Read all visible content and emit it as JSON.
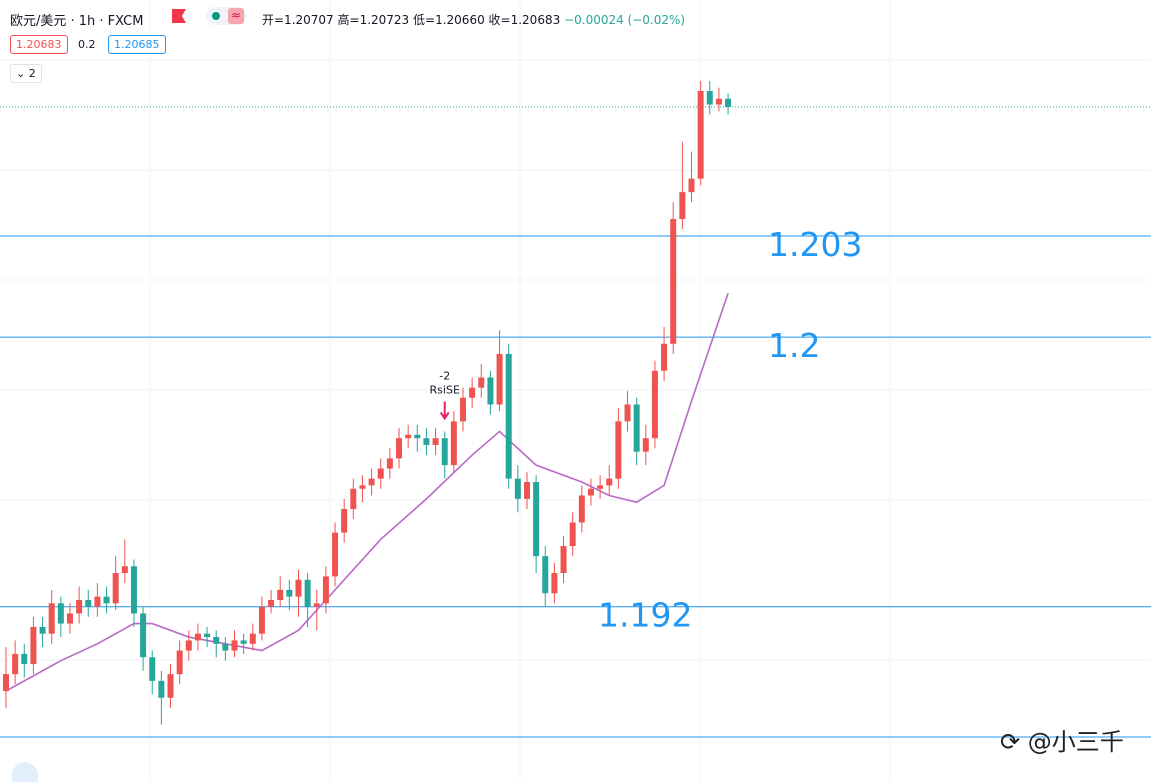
{
  "header": {
    "symbol": "欧元/美元 · 1h · FXCM",
    "open": "开=1.20707",
    "high": "高=1.20723",
    "low": "低=1.20660",
    "close": "收=1.20683",
    "change": "−0.00024 (−0.02%)",
    "bid": "1.20683",
    "spread": "0.2",
    "ask": "1.20685",
    "indicators": "2"
  },
  "watermark": "@小三千",
  "chart_data": {
    "type": "candlestick",
    "ylim": [
      1.1868,
      1.21
    ],
    "up_color": "#ef5350",
    "down_color": "#26a69a",
    "candles": [
      [
        1.1895,
        1.1908,
        1.189,
        1.19
      ],
      [
        1.19,
        1.191,
        1.1897,
        1.1906
      ],
      [
        1.1906,
        1.1909,
        1.1899,
        1.1903
      ],
      [
        1.1903,
        1.1917,
        1.19,
        1.1914
      ],
      [
        1.1914,
        1.1917,
        1.1908,
        1.1912
      ],
      [
        1.1912,
        1.1925,
        1.1909,
        1.1921
      ],
      [
        1.1921,
        1.1923,
        1.1911,
        1.1915
      ],
      [
        1.1915,
        1.1921,
        1.1912,
        1.1918
      ],
      [
        1.1918,
        1.1926,
        1.1915,
        1.1922
      ],
      [
        1.1922,
        1.1925,
        1.1917,
        1.192
      ],
      [
        1.192,
        1.1927,
        1.1917,
        1.1923
      ],
      [
        1.1923,
        1.1926,
        1.1918,
        1.1921
      ],
      [
        1.1921,
        1.1935,
        1.1919,
        1.193
      ],
      [
        1.193,
        1.194,
        1.1927,
        1.1932
      ],
      [
        1.1932,
        1.1934,
        1.1914,
        1.1918
      ],
      [
        1.1918,
        1.192,
        1.1901,
        1.1905
      ],
      [
        1.1905,
        1.1907,
        1.1894,
        1.1898
      ],
      [
        1.1898,
        1.1901,
        1.1885,
        1.1893
      ],
      [
        1.1893,
        1.1903,
        1.189,
        1.19
      ],
      [
        1.19,
        1.191,
        1.1897,
        1.1907
      ],
      [
        1.1907,
        1.1913,
        1.1904,
        1.191
      ],
      [
        1.191,
        1.1915,
        1.1907,
        1.1912
      ],
      [
        1.1912,
        1.1914,
        1.1908,
        1.1911
      ],
      [
        1.1911,
        1.1913,
        1.1905,
        1.1909
      ],
      [
        1.1909,
        1.1911,
        1.1904,
        1.1907
      ],
      [
        1.1907,
        1.1913,
        1.1905,
        1.191
      ],
      [
        1.191,
        1.1912,
        1.1906,
        1.1909
      ],
      [
        1.1909,
        1.1915,
        1.1907,
        1.1912
      ],
      [
        1.1912,
        1.1923,
        1.191,
        1.192
      ],
      [
        1.192,
        1.1925,
        1.1918,
        1.1922
      ],
      [
        1.1922,
        1.1929,
        1.192,
        1.1925
      ],
      [
        1.1925,
        1.1928,
        1.1919,
        1.1923
      ],
      [
        1.1923,
        1.1931,
        1.1917,
        1.1928
      ],
      [
        1.1928,
        1.193,
        1.1914,
        1.192
      ],
      [
        1.192,
        1.1925,
        1.1913,
        1.1921
      ],
      [
        1.1921,
        1.1932,
        1.1918,
        1.1929
      ],
      [
        1.1929,
        1.1945,
        1.1926,
        1.1942
      ],
      [
        1.1942,
        1.1952,
        1.1939,
        1.1949
      ],
      [
        1.1949,
        1.1958,
        1.1946,
        1.1955
      ],
      [
        1.1955,
        1.1959,
        1.1951,
        1.1956
      ],
      [
        1.1956,
        1.1961,
        1.1953,
        1.1958
      ],
      [
        1.1958,
        1.1964,
        1.1955,
        1.1961
      ],
      [
        1.1961,
        1.1967,
        1.1958,
        1.1964
      ],
      [
        1.1964,
        1.1973,
        1.1961,
        1.197
      ],
      [
        1.197,
        1.1974,
        1.1967,
        1.1971
      ],
      [
        1.1971,
        1.1974,
        1.1966,
        1.197
      ],
      [
        1.197,
        1.1973,
        1.1965,
        1.1968
      ],
      [
        1.1968,
        1.1973,
        1.1965,
        1.197
      ],
      [
        1.197,
        1.1972,
        1.1958,
        1.1962
      ],
      [
        1.1962,
        1.1978,
        1.196,
        1.1975
      ],
      [
        1.1975,
        1.1985,
        1.1972,
        1.1982
      ],
      [
        1.1982,
        1.1988,
        1.1979,
        1.1985
      ],
      [
        1.1985,
        1.1992,
        1.1982,
        1.1988
      ],
      [
        1.1988,
        1.199,
        1.1977,
        1.198
      ],
      [
        1.198,
        1.2002,
        1.1978,
        1.1995
      ],
      [
        1.1995,
        1.1998,
        1.1955,
        1.1958
      ],
      [
        1.1958,
        1.1962,
        1.1948,
        1.1952
      ],
      [
        1.1952,
        1.196,
        1.1949,
        1.1957
      ],
      [
        1.1957,
        1.1959,
        1.193,
        1.1935
      ],
      [
        1.1935,
        1.1938,
        1.192,
        1.1924
      ],
      [
        1.1924,
        1.1933,
        1.1921,
        1.193
      ],
      [
        1.193,
        1.1941,
        1.1927,
        1.1938
      ],
      [
        1.1938,
        1.1948,
        1.1935,
        1.1945
      ],
      [
        1.1945,
        1.1956,
        1.1942,
        1.1953
      ],
      [
        1.1953,
        1.1958,
        1.195,
        1.1955
      ],
      [
        1.1955,
        1.1959,
        1.1952,
        1.1956
      ],
      [
        1.1956,
        1.1962,
        1.1953,
        1.1958
      ],
      [
        1.1958,
        1.1979,
        1.1955,
        1.1975
      ],
      [
        1.1975,
        1.1984,
        1.1972,
        1.198
      ],
      [
        1.198,
        1.1982,
        1.1962,
        1.1966
      ],
      [
        1.1966,
        1.1974,
        1.1962,
        1.197
      ],
      [
        1.197,
        1.1993,
        1.1967,
        1.199
      ],
      [
        1.199,
        1.2003,
        1.1987,
        1.1998
      ],
      [
        1.1998,
        1.204,
        1.1995,
        1.2035
      ],
      [
        1.2035,
        1.2058,
        1.2032,
        1.2043
      ],
      [
        1.2043,
        1.2055,
        1.204,
        1.2047
      ],
      [
        1.2047,
        1.2076,
        1.2045,
        1.2073
      ],
      [
        1.2073,
        1.2076,
        1.2066,
        1.2069
      ],
      [
        1.2069,
        1.2074,
        1.2067,
        1.20707
      ],
      [
        1.20707,
        1.20723,
        1.2066,
        1.20683
      ]
    ],
    "ma": {
      "color": "#ba68c8",
      "x": [
        0,
        6,
        10,
        14,
        16,
        20,
        28,
        32,
        35,
        41,
        46,
        51,
        54,
        58,
        63,
        66,
        69,
        72,
        75,
        79
      ],
      "values": [
        1.1895,
        1.1904,
        1.1909,
        1.1915,
        1.1915,
        1.1911,
        1.1907,
        1.1913,
        1.1922,
        1.194,
        1.1952,
        1.1965,
        1.1972,
        1.1962,
        1.1957,
        1.1953,
        1.1951,
        1.1956,
        1.1981,
        1.2013
      ]
    },
    "levels": [
      1.203,
      1.2,
      1.192
    ],
    "level_color": "#2196f3",
    "annotations": [
      "-2",
      "RsiSE"
    ]
  }
}
